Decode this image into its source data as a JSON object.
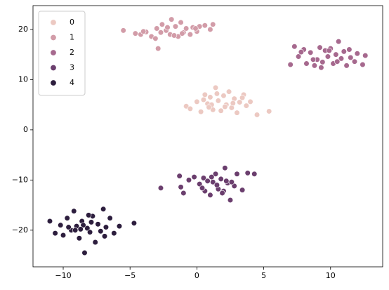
{
  "chart_data": {
    "type": "scatter",
    "xlim": [
      -12.26,
      13.9
    ],
    "ylim": [
      -27.3,
      24.75
    ],
    "xticks": [
      {
        "value": -10,
        "label": "−10"
      },
      {
        "value": -5,
        "label": "−5"
      },
      0,
      5,
      10
    ],
    "yticks": [
      {
        "value": -20,
        "label": "−20"
      },
      {
        "value": -10,
        "label": "−10"
      },
      0,
      10,
      20
    ],
    "legend": "upper left",
    "series": [
      {
        "name": "0",
        "color": "#ecc9c2",
        "x": [
          -0.8,
          -0.5,
          0,
          0.3,
          0.6,
          0.8,
          1,
          1.2,
          1.4,
          1.6,
          1.8,
          2,
          2.2,
          2.4,
          2.6,
          2.8,
          3,
          3.2,
          3.5,
          3.7,
          4,
          4.5,
          5.4,
          1.1,
          2.1,
          0.5,
          2.7,
          1.5,
          3.4,
          0.9
        ],
        "y": [
          4.7,
          4.2,
          5.6,
          3.6,
          7,
          5.2,
          6.5,
          4,
          8.4,
          5.8,
          3.8,
          6.8,
          5,
          7.6,
          4.4,
          6.2,
          3.4,
          5.5,
          7,
          4.8,
          5.6,
          3,
          3.7,
          5,
          4.6,
          6,
          5.3,
          7.2,
          6.4,
          4.5
        ]
      },
      {
        "name": "1",
        "color": "#d29ca8",
        "x": [
          -5.5,
          -4.6,
          -4.2,
          -3.8,
          -3.4,
          -3,
          -2.9,
          -2.6,
          -2.3,
          -2,
          -1.9,
          -1.6,
          -1.4,
          -1.2,
          -1,
          -0.8,
          -0.5,
          -0.3,
          0,
          0.2,
          0.6,
          1,
          1.2,
          -3.1,
          -2.2,
          -1.1,
          -0.1,
          -2.7,
          -1.7,
          -4
        ],
        "y": [
          19.8,
          19.2,
          19,
          19.5,
          18.6,
          20.2,
          16.2,
          21,
          19.8,
          19,
          22,
          20.6,
          18.6,
          21.4,
          19.4,
          20.2,
          19,
          20.4,
          19.6,
          20.6,
          20.8,
          20,
          21,
          18.2,
          20.4,
          19.2,
          20.2,
          19.4,
          18.8,
          19.6
        ]
      },
      {
        "name": "2",
        "color": "#a6698e",
        "x": [
          7,
          7.3,
          7.6,
          8,
          8.2,
          8.5,
          8.8,
          9,
          9.2,
          9.4,
          9.6,
          9.8,
          10,
          10.2,
          10.4,
          10.6,
          10.8,
          11,
          11.2,
          11.5,
          11.8,
          12,
          12.4,
          12.6,
          9.9,
          8.7,
          10.5,
          11.4,
          9.3,
          7.8
        ],
        "y": [
          13,
          16.6,
          14.6,
          16,
          13.2,
          15.4,
          12.8,
          14,
          16.4,
          13.5,
          15.8,
          14.6,
          16.2,
          13.2,
          15,
          17.6,
          14.2,
          15.6,
          12.8,
          14.4,
          13.6,
          15.2,
          13,
          14.8,
          15.8,
          14,
          13.6,
          16,
          12.4,
          15.5
        ]
      },
      {
        "name": "3",
        "color": "#6b3f6e",
        "x": [
          -2.7,
          -1.3,
          -1.2,
          -1,
          -0.6,
          -0.2,
          0.2,
          0.5,
          0.8,
          1,
          1.2,
          1.4,
          1.6,
          1.8,
          2,
          2.1,
          2.3,
          2.5,
          2.8,
          3,
          3.4,
          3.8,
          4.3,
          1.5,
          0.6,
          2.2,
          1.1,
          0.4,
          1.9,
          2.6
        ],
        "y": [
          -11.6,
          -9.2,
          -11.4,
          -12.6,
          -10,
          -9.4,
          -10.8,
          -9.6,
          -10.2,
          -13,
          -10.4,
          -8.8,
          -11.8,
          -9.8,
          -12.2,
          -7.6,
          -10.6,
          -14,
          -11.2,
          -8.8,
          -12,
          -8.6,
          -8.8,
          -11,
          -12.2,
          -10.2,
          -9.4,
          -11.6,
          -12.6,
          -10.4
        ]
      },
      {
        "name": "4",
        "color": "#2d1e3e",
        "x": [
          -11,
          -10.6,
          -10.2,
          -10,
          -9.7,
          -9.4,
          -9.2,
          -9,
          -8.8,
          -8.6,
          -8.4,
          -8.2,
          -8,
          -7.8,
          -7.6,
          -7.4,
          -7.2,
          -7,
          -6.8,
          -6.5,
          -6.2,
          -5.8,
          -4.7,
          -8.5,
          -9.1,
          -7.9,
          -8.7,
          -6.9,
          -9.6,
          -8.1
        ],
        "y": [
          -18.2,
          -20.6,
          -19,
          -21,
          -17.6,
          -20,
          -16.2,
          -19.2,
          -21.6,
          -18.2,
          -24.5,
          -19.6,
          -20.4,
          -17.2,
          -22.4,
          -18.8,
          -20.2,
          -15.8,
          -19.4,
          -17.6,
          -20.6,
          -19.2,
          -18.6,
          -19,
          -20,
          -18.4,
          -19.8,
          -21.2,
          -19.4,
          -17
        ]
      }
    ]
  }
}
